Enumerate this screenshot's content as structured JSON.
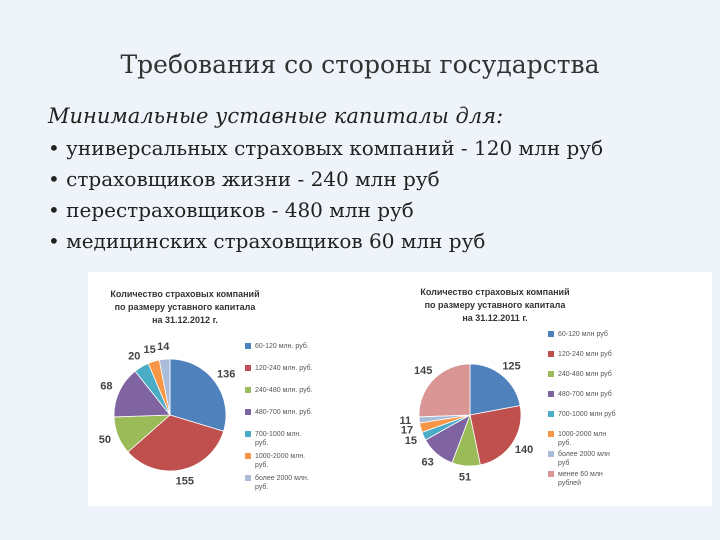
{
  "slide": {
    "title": "Требования со стороны государства",
    "subtitle": "Минимальные уставные капиталы для:",
    "bullets": [
      "универсальных страховых компаний - 120 млн руб",
      "страховщиков жизни - 240 млн руб",
      "перестраховщиков - 480 млн руб",
      "медицинских страховщиков 60 млн руб"
    ]
  },
  "chart_data": [
    {
      "type": "pie",
      "title": "Количество страховых компаний по размеру уставного капитала на 31.12.2012 г.",
      "categories": [
        "60-120 млн. руб.",
        "120-240 млн. руб.",
        "240-480 млн. руб.",
        "480-700 млн. руб.",
        "700-1000 млн. руб.",
        "1000-2000 млн. руб.",
        "более 2000 млн. руб."
      ],
      "values": [
        136,
        155,
        50,
        68,
        20,
        15,
        14
      ],
      "colors": [
        "#4f81bd",
        "#c0504d",
        "#9bbb59",
        "#8064a2",
        "#4bacc6",
        "#f79646",
        "#a9bcd9"
      ]
    },
    {
      "type": "pie",
      "title": "Количество страховых компаний по размеру уставного капитала на 31.12.2011 г.",
      "categories": [
        "60-120 млн руб",
        "120-240 млн руб",
        "240-480 млн руб",
        "480-700 млн руб",
        "700-1000 млн руб",
        "1000-2000 млн руб.",
        "более 2000 млн руб",
        "менее 60 млн рублей"
      ],
      "values": [
        125,
        140,
        51,
        63,
        15,
        17,
        11,
        145
      ],
      "colors": [
        "#4f81bd",
        "#c0504d",
        "#9bbb59",
        "#8064a2",
        "#4bacc6",
        "#f79646",
        "#a9bcd9",
        "#d99694"
      ]
    }
  ]
}
